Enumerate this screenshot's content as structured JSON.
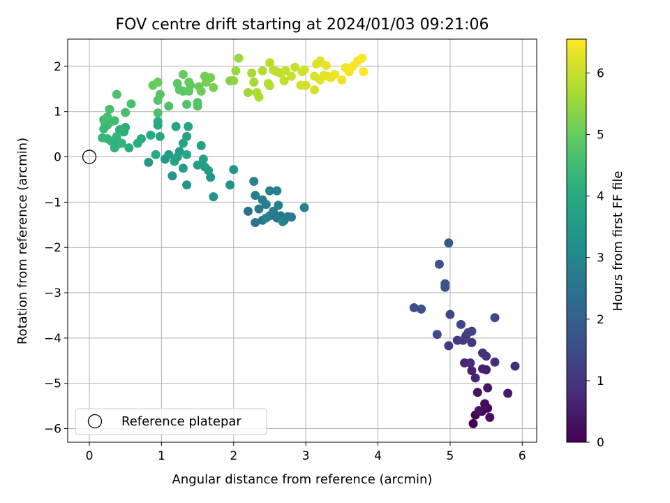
{
  "chart_data": {
    "type": "scatter",
    "title": "FOV centre drift starting at 2024/01/03 09:21:06",
    "xlabel": "Angular distance from reference (arcmin)",
    "ylabel": "Rotation from reference (arcmin)",
    "xlim": [
      -0.3,
      6.2
    ],
    "ylim": [
      -6.3,
      2.6
    ],
    "xticks": [
      0,
      1,
      2,
      3,
      4,
      5,
      6
    ],
    "yticks": [
      -6,
      -5,
      -4,
      -3,
      -2,
      -1,
      0,
      1,
      2
    ],
    "xtick_labels": [
      "0",
      "1",
      "2",
      "3",
      "4",
      "5",
      "6"
    ],
    "ytick_labels": [
      "−6",
      "−5",
      "−4",
      "−3",
      "−2",
      "−1",
      "0",
      "1",
      "2"
    ],
    "grid": true,
    "colormap": "viridis",
    "colorbar": {
      "label": "Hours from first FF file",
      "range": [
        0,
        6.55
      ],
      "ticks": [
        0,
        1,
        2,
        3,
        4,
        5,
        6
      ],
      "tick_labels": [
        "0",
        "1",
        "2",
        "3",
        "4",
        "5",
        "6"
      ]
    },
    "legend": {
      "position": "lower-left",
      "entries": [
        "Reference platepar"
      ]
    },
    "reference": {
      "x": 0,
      "y": 0
    },
    "points": [
      {
        "x": 5.32,
        "y": -5.89,
        "h": 0.0
      },
      {
        "x": 5.35,
        "y": -5.7,
        "h": 0.05
      },
      {
        "x": 5.44,
        "y": -5.62,
        "h": 0.1
      },
      {
        "x": 5.52,
        "y": -5.55,
        "h": 0.15
      },
      {
        "x": 5.48,
        "y": -5.45,
        "h": 0.2
      },
      {
        "x": 5.55,
        "y": -5.75,
        "h": 0.25
      },
      {
        "x": 5.4,
        "y": -5.6,
        "h": 0.3
      },
      {
        "x": 5.38,
        "y": -5.2,
        "h": 0.35
      },
      {
        "x": 5.52,
        "y": -5.1,
        "h": 0.4
      },
      {
        "x": 5.8,
        "y": -5.22,
        "h": 0.45
      },
      {
        "x": 5.5,
        "y": -4.7,
        "h": 0.5
      },
      {
        "x": 5.45,
        "y": -4.68,
        "h": 0.55
      },
      {
        "x": 5.3,
        "y": -4.72,
        "h": 0.6
      },
      {
        "x": 5.35,
        "y": -4.88,
        "h": 0.65
      },
      {
        "x": 5.2,
        "y": -4.55,
        "h": 0.7
      },
      {
        "x": 5.28,
        "y": -4.55,
        "h": 0.75
      },
      {
        "x": 5.62,
        "y": -4.53,
        "h": 0.8
      },
      {
        "x": 5.9,
        "y": -4.62,
        "h": 0.85
      },
      {
        "x": 5.45,
        "y": -4.33,
        "h": 0.9
      },
      {
        "x": 5.5,
        "y": -4.4,
        "h": 0.95
      },
      {
        "x": 5.3,
        "y": -4.1,
        "h": 1.0
      },
      {
        "x": 5.1,
        "y": -4.05,
        "h": 1.05
      },
      {
        "x": 4.98,
        "y": -4.17,
        "h": 1.1
      },
      {
        "x": 5.18,
        "y": -4.05,
        "h": 1.15
      },
      {
        "x": 5.22,
        "y": -3.95,
        "h": 1.2
      },
      {
        "x": 5.25,
        "y": -3.88,
        "h": 1.25
      },
      {
        "x": 5.3,
        "y": -3.85,
        "h": 1.3
      },
      {
        "x": 5.15,
        "y": -3.7,
        "h": 1.35
      },
      {
        "x": 5.0,
        "y": -3.48,
        "h": 1.4
      },
      {
        "x": 5.62,
        "y": -3.55,
        "h": 1.45
      },
      {
        "x": 4.82,
        "y": -3.92,
        "h": 1.5
      },
      {
        "x": 4.5,
        "y": -3.33,
        "h": 1.55
      },
      {
        "x": 4.6,
        "y": -3.36,
        "h": 1.6
      },
      {
        "x": 4.85,
        "y": -2.37,
        "h": 1.65
      },
      {
        "x": 4.93,
        "y": -2.8,
        "h": 1.7
      },
      {
        "x": 4.93,
        "y": -2.88,
        "h": 1.75
      },
      {
        "x": 4.98,
        "y": -1.9,
        "h": 1.8
      },
      {
        "x": 2.2,
        "y": -1.2,
        "h": 2.45
      },
      {
        "x": 2.3,
        "y": -1.45,
        "h": 2.48
      },
      {
        "x": 2.4,
        "y": -1.4,
        "h": 2.5
      },
      {
        "x": 2.5,
        "y": -1.3,
        "h": 2.52
      },
      {
        "x": 2.6,
        "y": -1.35,
        "h": 2.55
      },
      {
        "x": 2.7,
        "y": -1.4,
        "h": 2.58
      },
      {
        "x": 2.65,
        "y": -1.3,
        "h": 2.6
      },
      {
        "x": 2.75,
        "y": -1.32,
        "h": 2.62
      },
      {
        "x": 2.8,
        "y": -1.33,
        "h": 2.65
      },
      {
        "x": 2.35,
        "y": -1.15,
        "h": 2.68
      },
      {
        "x": 2.45,
        "y": -1.05,
        "h": 2.7
      },
      {
        "x": 2.55,
        "y": -1.2,
        "h": 2.72
      },
      {
        "x": 2.62,
        "y": -1.07,
        "h": 2.75
      },
      {
        "x": 2.4,
        "y": -0.95,
        "h": 2.78
      },
      {
        "x": 2.3,
        "y": -0.85,
        "h": 2.8
      },
      {
        "x": 2.5,
        "y": -0.75,
        "h": 2.82
      },
      {
        "x": 2.6,
        "y": -0.75,
        "h": 2.85
      },
      {
        "x": 2.28,
        "y": -0.54,
        "h": 2.88
      },
      {
        "x": 2.98,
        "y": -1.12,
        "h": 2.9
      },
      {
        "x": 2.45,
        "y": -1.35,
        "h": 2.92
      },
      {
        "x": 2.68,
        "y": -1.43,
        "h": 2.95
      },
      {
        "x": 1.68,
        "y": -0.45,
        "h": 3.35
      },
      {
        "x": 1.95,
        "y": -0.62,
        "h": 3.38
      },
      {
        "x": 1.72,
        "y": -0.88,
        "h": 3.4
      },
      {
        "x": 2.0,
        "y": -0.28,
        "h": 3.42
      },
      {
        "x": 1.35,
        "y": -0.62,
        "h": 3.45
      },
      {
        "x": 1.15,
        "y": -0.42,
        "h": 3.48
      },
      {
        "x": 1.05,
        "y": -0.05,
        "h": 3.5
      },
      {
        "x": 0.82,
        "y": -0.12,
        "h": 3.52
      },
      {
        "x": 1.1,
        "y": 0.05,
        "h": 3.55
      },
      {
        "x": 1.25,
        "y": 0.12,
        "h": 3.58
      },
      {
        "x": 1.3,
        "y": -0.25,
        "h": 3.6
      },
      {
        "x": 1.5,
        "y": -0.18,
        "h": 3.62
      },
      {
        "x": 1.6,
        "y": -0.22,
        "h": 3.65
      },
      {
        "x": 1.65,
        "y": -0.3,
        "h": 3.68
      },
      {
        "x": 1.58,
        "y": -0.05,
        "h": 3.7
      },
      {
        "x": 1.55,
        "y": 0.25,
        "h": 3.72
      },
      {
        "x": 1.22,
        "y": 0.0,
        "h": 3.75
      },
      {
        "x": 1.3,
        "y": 0.3,
        "h": 3.78
      },
      {
        "x": 1.35,
        "y": 0.45,
        "h": 3.8
      },
      {
        "x": 1.37,
        "y": 0.67,
        "h": 3.82
      },
      {
        "x": 1.18,
        "y": -0.1,
        "h": 3.85
      },
      {
        "x": 1.2,
        "y": 0.67,
        "h": 3.88
      },
      {
        "x": 1.35,
        "y": 0.05,
        "h": 3.9
      },
      {
        "x": 0.98,
        "y": 0.45,
        "h": 3.92
      },
      {
        "x": 0.92,
        "y": 0.05,
        "h": 3.95
      },
      {
        "x": 0.95,
        "y": 0.7,
        "h": 3.98
      },
      {
        "x": 0.95,
        "y": 0.78,
        "h": 4.0
      },
      {
        "x": 0.85,
        "y": 0.48,
        "h": 4.02
      },
      {
        "x": 0.72,
        "y": 0.4,
        "h": 4.05
      },
      {
        "x": 0.67,
        "y": 0.3,
        "h": 4.08
      },
      {
        "x": 0.55,
        "y": 0.2,
        "h": 4.1
      },
      {
        "x": 0.5,
        "y": 0.65,
        "h": 4.12
      },
      {
        "x": 0.48,
        "y": 0.55,
        "h": 4.15
      },
      {
        "x": 0.42,
        "y": 0.6,
        "h": 4.18
      },
      {
        "x": 0.35,
        "y": 0.2,
        "h": 4.2
      },
      {
        "x": 0.4,
        "y": 0.28,
        "h": 4.22
      },
      {
        "x": 0.3,
        "y": 0.35,
        "h": 4.25
      },
      {
        "x": 0.45,
        "y": 0.3,
        "h": 4.28
      },
      {
        "x": 0.38,
        "y": 0.45,
        "h": 4.3
      },
      {
        "x": 0.25,
        "y": 0.4,
        "h": 4.32
      },
      {
        "x": 0.18,
        "y": 0.42,
        "h": 4.35
      },
      {
        "x": 0.2,
        "y": 0.62,
        "h": 4.38
      },
      {
        "x": 0.22,
        "y": 0.75,
        "h": 4.4
      },
      {
        "x": 0.25,
        "y": 0.7,
        "h": 4.42
      },
      {
        "x": 0.3,
        "y": 0.78,
        "h": 4.45
      },
      {
        "x": 0.35,
        "y": 0.8,
        "h": 4.48
      },
      {
        "x": 0.2,
        "y": 0.82,
        "h": 4.5
      },
      {
        "x": 0.25,
        "y": 0.88,
        "h": 4.52
      },
      {
        "x": 0.28,
        "y": 1.05,
        "h": 4.55
      },
      {
        "x": 0.5,
        "y": 0.98,
        "h": 4.58
      },
      {
        "x": 0.58,
        "y": 1.17,
        "h": 4.6
      },
      {
        "x": 0.38,
        "y": 1.38,
        "h": 4.62
      },
      {
        "x": 0.95,
        "y": 0.97,
        "h": 4.65
      },
      {
        "x": 1.1,
        "y": 1.12,
        "h": 4.68
      },
      {
        "x": 1.35,
        "y": 1.16,
        "h": 4.7
      },
      {
        "x": 1.5,
        "y": 1.12,
        "h": 4.72
      },
      {
        "x": 1.5,
        "y": 1.2,
        "h": 4.75
      },
      {
        "x": 0.95,
        "y": 1.25,
        "h": 4.78
      },
      {
        "x": 0.98,
        "y": 1.38,
        "h": 4.8
      },
      {
        "x": 1.22,
        "y": 1.62,
        "h": 4.82
      },
      {
        "x": 1.25,
        "y": 1.48,
        "h": 4.85
      },
      {
        "x": 1.3,
        "y": 1.45,
        "h": 4.88
      },
      {
        "x": 1.38,
        "y": 1.45,
        "h": 4.9
      },
      {
        "x": 1.4,
        "y": 1.58,
        "h": 4.92
      },
      {
        "x": 1.38,
        "y": 1.65,
        "h": 4.95
      },
      {
        "x": 1.3,
        "y": 1.82,
        "h": 4.98
      },
      {
        "x": 0.88,
        "y": 1.58,
        "h": 5.0
      },
      {
        "x": 0.95,
        "y": 1.65,
        "h": 5.02
      },
      {
        "x": 1.52,
        "y": 1.55,
        "h": 5.05
      },
      {
        "x": 1.55,
        "y": 1.45,
        "h": 5.08
      },
      {
        "x": 1.6,
        "y": 1.78,
        "h": 5.1
      },
      {
        "x": 1.62,
        "y": 1.65,
        "h": 5.12
      },
      {
        "x": 1.68,
        "y": 1.75,
        "h": 5.15
      },
      {
        "x": 1.72,
        "y": 1.53,
        "h": 5.18
      },
      {
        "x": 1.95,
        "y": 1.68,
        "h": 5.3
      },
      {
        "x": 2.0,
        "y": 1.68,
        "h": 5.4
      },
      {
        "x": 2.03,
        "y": 1.9,
        "h": 5.5
      },
      {
        "x": 2.07,
        "y": 2.18,
        "h": 5.55
      },
      {
        "x": 2.2,
        "y": 1.42,
        "h": 5.6
      },
      {
        "x": 2.28,
        "y": 1.65,
        "h": 5.65
      },
      {
        "x": 2.25,
        "y": 1.85,
        "h": 5.7
      },
      {
        "x": 2.32,
        "y": 1.42,
        "h": 5.72
      },
      {
        "x": 2.35,
        "y": 1.32,
        "h": 5.75
      },
      {
        "x": 2.4,
        "y": 1.9,
        "h": 5.78
      },
      {
        "x": 2.48,
        "y": 1.62,
        "h": 5.8
      },
      {
        "x": 2.5,
        "y": 1.57,
        "h": 5.82
      },
      {
        "x": 2.5,
        "y": 2.08,
        "h": 5.85
      },
      {
        "x": 2.55,
        "y": 1.92,
        "h": 5.88
      },
      {
        "x": 2.6,
        "y": 1.88,
        "h": 5.9
      },
      {
        "x": 2.65,
        "y": 1.85,
        "h": 5.92
      },
      {
        "x": 2.7,
        "y": 1.68,
        "h": 5.95
      },
      {
        "x": 2.72,
        "y": 1.9,
        "h": 5.97
      },
      {
        "x": 2.8,
        "y": 1.78,
        "h": 6.0
      },
      {
        "x": 2.85,
        "y": 1.98,
        "h": 6.02
      },
      {
        "x": 2.95,
        "y": 1.88,
        "h": 6.05
      },
      {
        "x": 2.93,
        "y": 1.58,
        "h": 6.08
      },
      {
        "x": 3.0,
        "y": 1.58,
        "h": 6.1
      },
      {
        "x": 2.98,
        "y": 1.92,
        "h": 6.12
      },
      {
        "x": 3.12,
        "y": 1.48,
        "h": 6.15
      },
      {
        "x": 3.12,
        "y": 1.78,
        "h": 6.18
      },
      {
        "x": 3.15,
        "y": 2.05,
        "h": 6.2
      },
      {
        "x": 3.2,
        "y": 2.12,
        "h": 6.22
      },
      {
        "x": 3.2,
        "y": 1.7,
        "h": 6.25
      },
      {
        "x": 3.25,
        "y": 1.8,
        "h": 6.28
      },
      {
        "x": 3.3,
        "y": 1.78,
        "h": 6.3
      },
      {
        "x": 3.28,
        "y": 2.02,
        "h": 6.32
      },
      {
        "x": 3.35,
        "y": 1.75,
        "h": 6.35
      },
      {
        "x": 3.4,
        "y": 1.82,
        "h": 6.38
      },
      {
        "x": 3.5,
        "y": 1.7,
        "h": 6.4
      },
      {
        "x": 3.55,
        "y": 1.97,
        "h": 6.42
      },
      {
        "x": 3.6,
        "y": 1.88,
        "h": 6.45
      },
      {
        "x": 3.65,
        "y": 2.0,
        "h": 6.48
      },
      {
        "x": 3.72,
        "y": 2.12,
        "h": 6.5
      },
      {
        "x": 3.78,
        "y": 2.18,
        "h": 6.52
      },
      {
        "x": 3.8,
        "y": 1.88,
        "h": 6.55
      }
    ]
  }
}
